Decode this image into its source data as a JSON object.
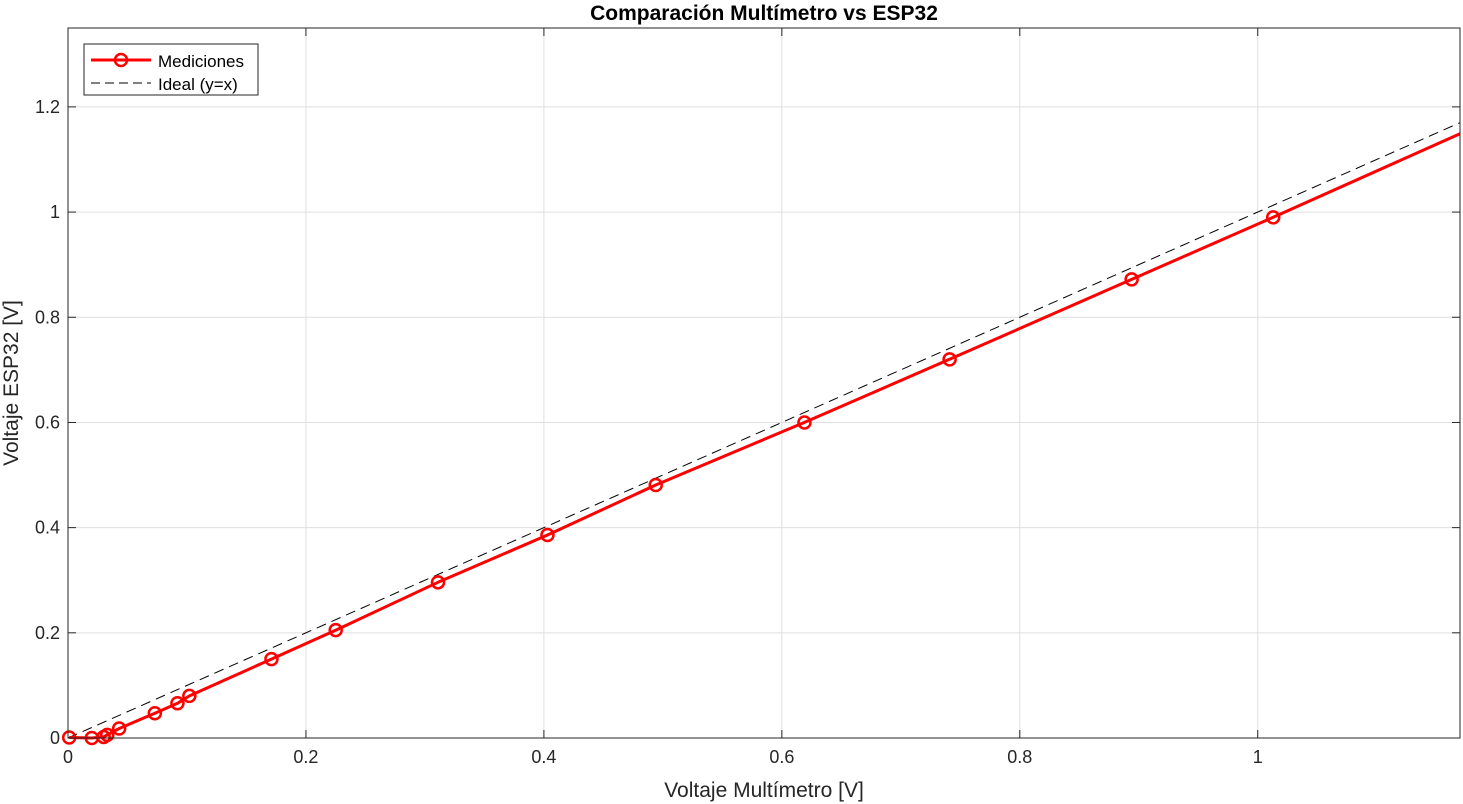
{
  "chart_data": {
    "type": "line",
    "title": "Comparación Multímetro vs ESP32",
    "xlabel": "Voltaje Multímetro [V]",
    "ylabel": "Voltaje ESP32 [V]",
    "xlim": [
      0,
      1.17
    ],
    "ylim": [
      0,
      1.35
    ],
    "xticks": [
      0,
      0.2,
      0.4,
      0.6,
      0.8,
      1
    ],
    "xtick_labels": [
      "0",
      "0.2",
      "0.4",
      "0.6",
      "0.8",
      "1"
    ],
    "yticks": [
      0,
      0.2,
      0.4,
      0.6,
      0.8,
      1,
      1.2
    ],
    "ytick_labels": [
      "0",
      "0.2",
      "0.4",
      "0.6",
      "0.8",
      "1",
      "1.2"
    ],
    "grid": true,
    "legend_position": "top-left",
    "series": [
      {
        "name": "Mediciones",
        "color": "#ff0000",
        "style": "solid-with-circle-markers",
        "x": [
          0.001,
          0.02,
          0.03,
          0.033,
          0.043,
          0.073,
          0.092,
          0.102,
          0.171,
          0.225,
          0.311,
          0.403,
          0.494,
          0.619,
          0.741,
          0.894,
          1.013
        ],
        "y": [
          0.001,
          0.0,
          0.002,
          0.006,
          0.018,
          0.047,
          0.066,
          0.08,
          0.15,
          0.205,
          0.296,
          0.386,
          0.481,
          0.6,
          0.72,
          0.872,
          0.99
        ],
        "fit_line": {
          "x": [
            0,
            1.17
          ],
          "y": [
            -0.01,
            1.149
          ]
        }
      },
      {
        "name": "Ideal (y=x)",
        "color": "#000000",
        "style": "dashed",
        "x": [
          0,
          1.17
        ],
        "y": [
          0,
          1.17
        ]
      }
    ]
  }
}
